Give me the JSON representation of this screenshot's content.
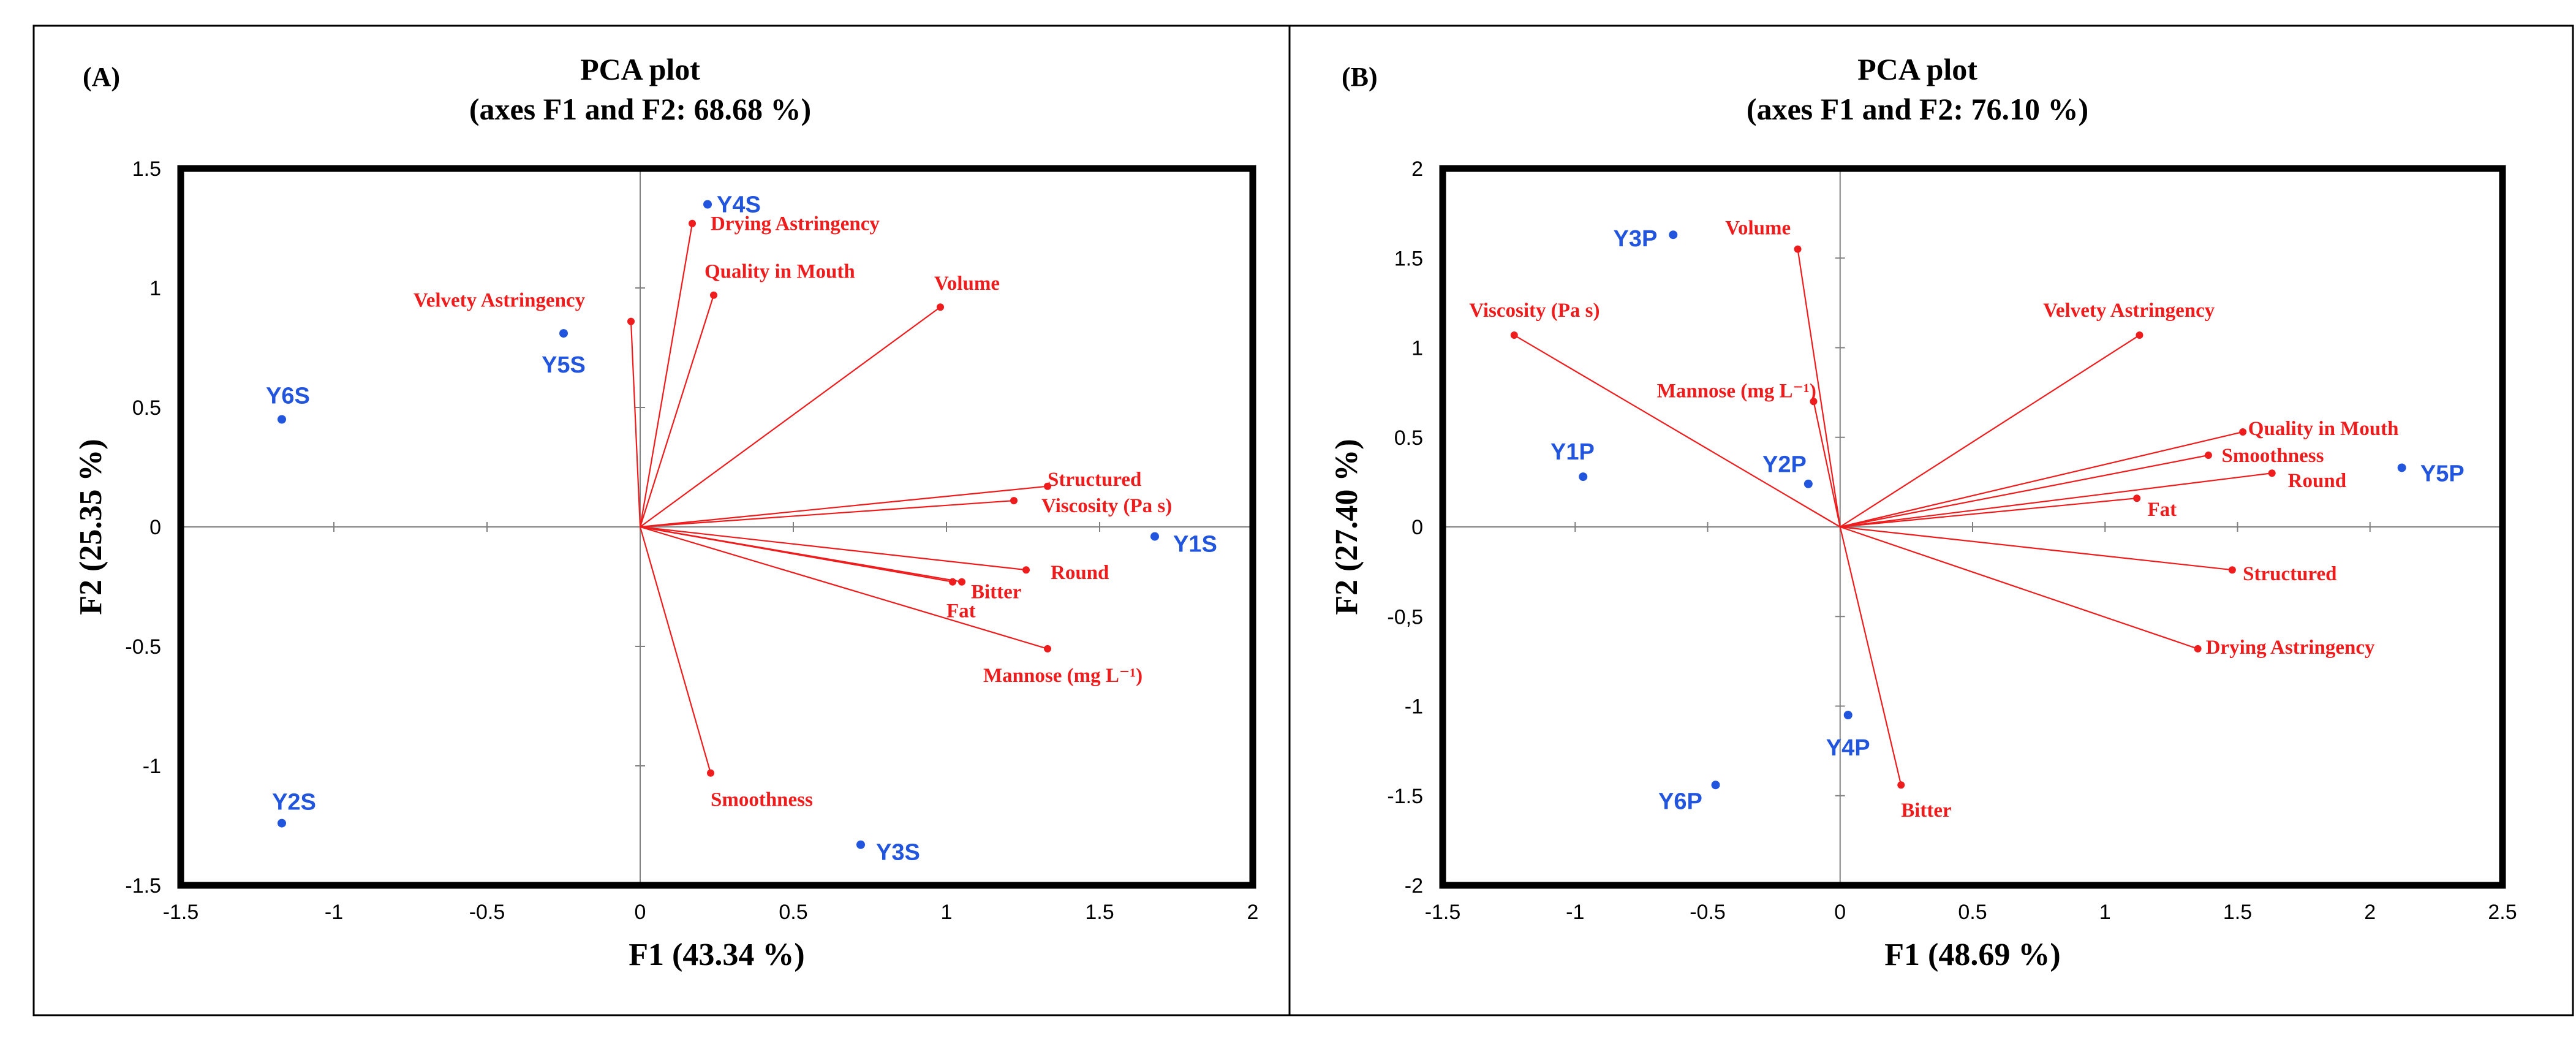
{
  "figure": {
    "colors": {
      "variable": "#ee1c1c",
      "observation": "#2255dd",
      "axis": "#808080",
      "frame": "#000000"
    }
  },
  "chart_data": [
    {
      "type": "scatter",
      "subtype": "pca-biplot",
      "panel_label": "(A)",
      "title": "PCA plot",
      "subtitle": "(axes F1 and F2: 68.68 %)",
      "xlabel": "F1 (43.34 %)",
      "ylabel": "F2 (25.35 %)",
      "xlim": [
        -1.5,
        2
      ],
      "ylim": [
        -1.5,
        1.5
      ],
      "xticks": [
        -1.5,
        -1,
        -0.5,
        0,
        0.5,
        1,
        1.5,
        2
      ],
      "xtick_labels": [
        "-1.5",
        "-1",
        "-0.5",
        "0",
        "0.5",
        "1",
        "1.5",
        "2"
      ],
      "yticks": [
        -1.5,
        -1,
        -0.5,
        0,
        0.5,
        1,
        1.5
      ],
      "ytick_labels": [
        "-1.5",
        "-1",
        "-0.5",
        "0",
        "0.5",
        "1",
        "1.5"
      ],
      "variables": [
        {
          "name": "Drying Astringency",
          "x": 0.17,
          "y": 1.27,
          "anchor": "start",
          "dx": 0.06,
          "dy": 0.0
        },
        {
          "name": "Quality in Mouth",
          "x": 0.24,
          "y": 0.97,
          "anchor": "start",
          "dx": -0.03,
          "dy": 0.1
        },
        {
          "name": "Volume",
          "x": 0.98,
          "y": 0.92,
          "anchor": "start",
          "dx": -0.02,
          "dy": 0.1
        },
        {
          "name": "Velvety Astringency",
          "x": -0.03,
          "y": 0.86,
          "anchor": "middle",
          "dx": -0.43,
          "dy": 0.09
        },
        {
          "name": "Structured",
          "x": 1.33,
          "y": 0.17,
          "anchor": "start",
          "dx": 0.0,
          "dy": 0.03
        },
        {
          "name": "Viscosity (Pa s)",
          "x": 1.22,
          "y": 0.11,
          "anchor": "start",
          "dx": 0.09,
          "dy": -0.02
        },
        {
          "name": "Round",
          "x": 1.26,
          "y": -0.18,
          "anchor": "start",
          "dx": 0.08,
          "dy": -0.01
        },
        {
          "name": "Bitter",
          "x": 1.05,
          "y": -0.23,
          "anchor": "start",
          "dx": 0.03,
          "dy": -0.04
        },
        {
          "name": "Fat",
          "x": 1.02,
          "y": -0.23,
          "anchor": "start",
          "dx": -0.02,
          "dy": -0.12
        },
        {
          "name": "Mannose (mg L⁻¹)",
          "x": 1.33,
          "y": -0.51,
          "anchor": "start",
          "dx": -0.21,
          "dy": -0.11
        },
        {
          "name": "Smoothness",
          "x": 0.23,
          "y": -1.03,
          "anchor": "start",
          "dx": 0.0,
          "dy": -0.11
        }
      ],
      "observations": [
        {
          "name": "Y4S",
          "x": 0.22,
          "y": 1.35,
          "anchor": "start",
          "dx": 0.03,
          "dy": 0.0
        },
        {
          "name": "Y5S",
          "x": -0.25,
          "y": 0.81,
          "anchor": "middle",
          "dx": 0.0,
          "dy": -0.13
        },
        {
          "name": "Y6S",
          "x": -1.17,
          "y": 0.45,
          "anchor": "middle",
          "dx": 0.02,
          "dy": 0.1
        },
        {
          "name": "Y1S",
          "x": 1.68,
          "y": -0.04,
          "anchor": "start",
          "dx": 0.06,
          "dy": -0.03
        },
        {
          "name": "Y2S",
          "x": -1.17,
          "y": -1.24,
          "anchor": "middle",
          "dx": 0.04,
          "dy": 0.09
        },
        {
          "name": "Y3S",
          "x": 0.72,
          "y": -1.33,
          "anchor": "start",
          "dx": 0.05,
          "dy": -0.03
        }
      ]
    },
    {
      "type": "scatter",
      "subtype": "pca-biplot",
      "panel_label": "(B)",
      "title": "PCA plot",
      "subtitle": "(axes F1 and F2: 76.10 %)",
      "xlabel": "F1 (48.69 %)",
      "ylabel": "F2 (27.40 %)",
      "xlim": [
        -1.5,
        2.5
      ],
      "ylim": [
        -2,
        2
      ],
      "xticks": [
        -1.5,
        -1,
        -0.5,
        0,
        0.5,
        1,
        1.5,
        2,
        2.5
      ],
      "xtick_labels": [
        "-1.5",
        "-1",
        "-0.5",
        "0",
        "0.5",
        "1",
        "1.5",
        "2",
        "2.5"
      ],
      "yticks": [
        -2,
        -1.5,
        -1,
        -0.5,
        0,
        0.5,
        1,
        1.5,
        2
      ],
      "ytick_labels": [
        "-2",
        "-1.5",
        "-1",
        "-0,5",
        "0",
        "0.5",
        "1",
        "1.5",
        "2"
      ],
      "variables": [
        {
          "name": "Volume",
          "x": -0.16,
          "y": 1.55,
          "anchor": "middle",
          "dx": -0.15,
          "dy": 0.12
        },
        {
          "name": "Viscosity (Pa s)",
          "x": -1.23,
          "y": 1.07,
          "anchor": "start",
          "dx": -0.17,
          "dy": 0.14
        },
        {
          "name": "Mannose (mg L⁻¹)",
          "x": -0.1,
          "y": 0.7,
          "anchor": "end",
          "dx": 0.01,
          "dy": 0.06
        },
        {
          "name": "Velvety Astringency",
          "x": 1.13,
          "y": 1.07,
          "anchor": "middle",
          "dx": -0.04,
          "dy": 0.14
        },
        {
          "name": "Quality in Mouth",
          "x": 1.52,
          "y": 0.53,
          "anchor": "start",
          "dx": 0.02,
          "dy": 0.02
        },
        {
          "name": "Smoothness",
          "x": 1.39,
          "y": 0.4,
          "anchor": "start",
          "dx": 0.05,
          "dy": 0.0
        },
        {
          "name": "Round",
          "x": 1.63,
          "y": 0.3,
          "anchor": "start",
          "dx": 0.06,
          "dy": -0.04
        },
        {
          "name": "Fat",
          "x": 1.12,
          "y": 0.16,
          "anchor": "start",
          "dx": 0.04,
          "dy": -0.06
        },
        {
          "name": "Structured",
          "x": 1.48,
          "y": -0.24,
          "anchor": "start",
          "dx": 0.04,
          "dy": -0.02
        },
        {
          "name": "Drying Astringency",
          "x": 1.35,
          "y": -0.68,
          "anchor": "start",
          "dx": 0.03,
          "dy": 0.01
        },
        {
          "name": "Bitter",
          "x": 0.23,
          "y": -1.44,
          "anchor": "start",
          "dx": 0.0,
          "dy": -0.14
        }
      ],
      "observations": [
        {
          "name": "Y3P",
          "x": -0.63,
          "y": 1.63,
          "anchor": "end",
          "dx": -0.06,
          "dy": -0.02
        },
        {
          "name": "Y1P",
          "x": -0.97,
          "y": 0.28,
          "anchor": "middle",
          "dx": -0.04,
          "dy": 0.14
        },
        {
          "name": "Y2P",
          "x": -0.12,
          "y": 0.24,
          "anchor": "middle",
          "dx": -0.09,
          "dy": 0.11
        },
        {
          "name": "Y5P",
          "x": 2.12,
          "y": 0.33,
          "anchor": "start",
          "dx": 0.07,
          "dy": -0.03
        },
        {
          "name": "Y4P",
          "x": 0.03,
          "y": -1.05,
          "anchor": "middle",
          "dx": 0.0,
          "dy": -0.18
        },
        {
          "name": "Y6P",
          "x": -0.47,
          "y": -1.44,
          "anchor": "end",
          "dx": -0.05,
          "dy": -0.09
        }
      ]
    }
  ]
}
